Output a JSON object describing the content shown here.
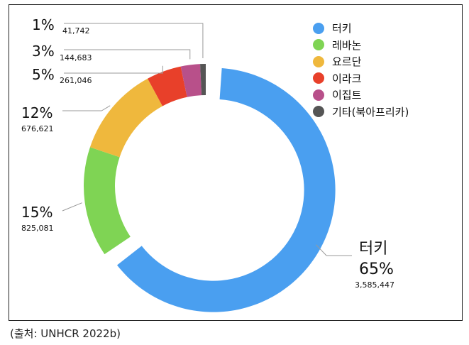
{
  "chart_data": {
    "type": "pie",
    "variant": "donut",
    "categories": [
      "터키",
      "레바논",
      "요르단",
      "이라크",
      "이집트",
      "기타(북아프리카)"
    ],
    "percent_labels": [
      "65%",
      "15%",
      "12%",
      "5%",
      "3%",
      "1%"
    ],
    "count_labels": [
      "3,585,447",
      "825,081",
      "676,621",
      "261,046",
      "144,683",
      "41,742"
    ],
    "values": [
      3585447,
      825081,
      676621,
      261046,
      144683,
      41742
    ],
    "colors": [
      "#4a9ff0",
      "#7fd454",
      "#efb83d",
      "#e8402a",
      "#b8508a",
      "#555555"
    ],
    "legend_placement": "top-right",
    "exploded_slice": "터키"
  },
  "source": "(출처: UNHCR 2022b)"
}
